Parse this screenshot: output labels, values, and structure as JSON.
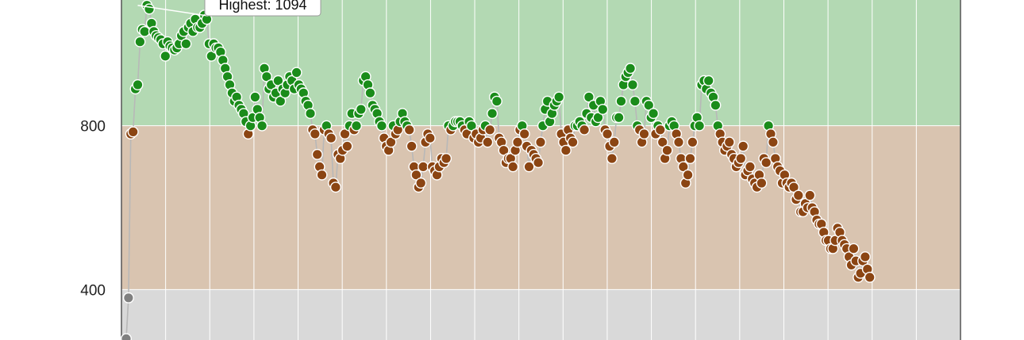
{
  "chart_data": {
    "type": "scatter",
    "title": "",
    "xlabel": "",
    "ylabel": "",
    "ylim": [
      277,
      1107
    ],
    "yticks": [
      {
        "value": 800,
        "label": "800"
      },
      {
        "value": 400,
        "label": "400"
      }
    ],
    "bands": [
      {
        "name": "above-800",
        "from": 800,
        "to": 1200,
        "color": "#b3d9b3"
      },
      {
        "name": "400-800",
        "from": 400,
        "to": 800,
        "color": "#d9c4b0"
      },
      {
        "name": "below-400",
        "from": 0,
        "to": 400,
        "color": "#d9d9d9"
      }
    ],
    "colors": {
      "high": "#1a8c1a",
      "mid": "#8b4513",
      "low": "#808080",
      "line": "#b8b8b8",
      "grid": "#ffffff"
    },
    "x_range": [
      0,
      360
    ],
    "annotation": {
      "text": "Highest: 1094",
      "x": 5,
      "value": 1094
    },
    "series": [
      {
        "values": [
          280,
          380,
          780,
          785,
          890,
          900,
          1005,
          1035,
          1030,
          1094,
          1085,
          1050,
          1030,
          1020,
          1015,
          1010,
          1000,
          970,
          1005,
          995,
          990,
          985,
          990,
          1000,
          1020,
          1030,
          1000,
          1040,
          1050,
          1030,
          1060,
          1040,
          1040,
          1050,
          1070,
          1060,
          1000,
          970,
          1000,
          990,
          990,
          980,
          960,
          940,
          920,
          900,
          880,
          860,
          870,
          850,
          840,
          830,
          810,
          780,
          800,
          820,
          870,
          840,
          820,
          800,
          940,
          920,
          890,
          900,
          870,
          880,
          910,
          860,
          890,
          880,
          900,
          920,
          910,
          890,
          930,
          900,
          890,
          880,
          860,
          850,
          830,
          790,
          780,
          730,
          700,
          680,
          790,
          800,
          780,
          770,
          660,
          650,
          730,
          720,
          740,
          780,
          750,
          800,
          830,
          790,
          800,
          830,
          840,
          910,
          920,
          900,
          880,
          850,
          840,
          830,
          810,
          800,
          770,
          750,
          740,
          760,
          800,
          780,
          790,
          810,
          830,
          810,
          800,
          790,
          750,
          700,
          680,
          650,
          660,
          700,
          760,
          780,
          770,
          700,
          690,
          680,
          700,
          720,
          710,
          720,
          800,
          790,
          800,
          810,
          810,
          810,
          800,
          790,
          780,
          810,
          800,
          770,
          780,
          760,
          770,
          790,
          800,
          760,
          790,
          830,
          870,
          860,
          770,
          760,
          740,
          710,
          720,
          720,
          700,
          740,
          760,
          790,
          800,
          780,
          750,
          700,
          740,
          730,
          720,
          710,
          760,
          800,
          840,
          860,
          810,
          830,
          850,
          860,
          870,
          780,
          760,
          740,
          790,
          770,
          760,
          800,
          800,
          810,
          800,
          790,
          830,
          870,
          820,
          850,
          810,
          820,
          860,
          840,
          790,
          780,
          750,
          720,
          760,
          820,
          820,
          860,
          900,
          920,
          930,
          940,
          900,
          860,
          800,
          790,
          760,
          780,
          860,
          850,
          820,
          830,
          780,
          800,
          790,
          760,
          720,
          740,
          800,
          810,
          800,
          780,
          760,
          720,
          700,
          660,
          680,
          720,
          760,
          800,
          820,
          800,
          900,
          910,
          890,
          910,
          880,
          870,
          850,
          800,
          780,
          760,
          740,
          750,
          760,
          730,
          720,
          700,
          710,
          720,
          750,
          680,
          690,
          700,
          670,
          660,
          650,
          680,
          660,
          720,
          710,
          800,
          780,
          760,
          720,
          700,
          690,
          660,
          680,
          660,
          650,
          660,
          650,
          620,
          630,
          590,
          590,
          610,
          600,
          630,
          600,
          590,
          570,
          560,
          560,
          540,
          520,
          520,
          500,
          500,
          520,
          550,
          540,
          520,
          510,
          500,
          480,
          460,
          500,
          470,
          430,
          440,
          470,
          480,
          450,
          430
        ]
      }
    ]
  }
}
